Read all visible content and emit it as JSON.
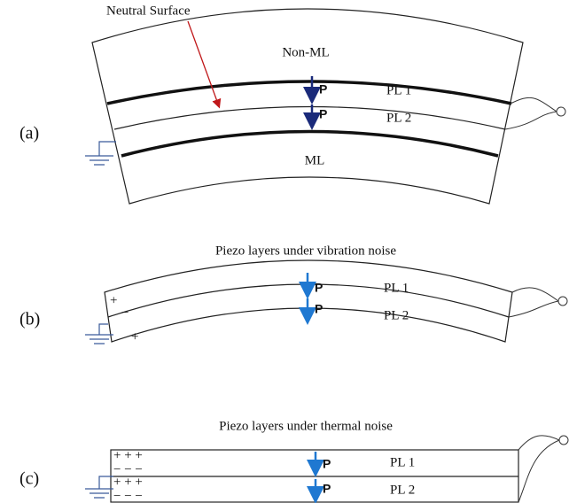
{
  "annotation": "Neutral Surface",
  "panels": [
    {
      "label": "(a)",
      "layers": [
        "Non-ML",
        "PL 1",
        "PL 2",
        "ML"
      ],
      "polarization": [
        "P",
        "P"
      ]
    },
    {
      "label": "(b)",
      "title": "Piezo layers under vibration noise",
      "layers": [
        "PL 1",
        "PL 2"
      ],
      "polarization": [
        "P",
        "P"
      ],
      "charges": [
        "+",
        "−",
        "+"
      ]
    },
    {
      "label": "(c)",
      "title": "Piezo layers under thermal noise",
      "layers": [
        "PL 1",
        "PL 2"
      ],
      "polarization": [
        "P",
        "P"
      ],
      "charges": [
        "+ + +",
        "− − −",
        "+ + +",
        "− − −"
      ]
    }
  ]
}
